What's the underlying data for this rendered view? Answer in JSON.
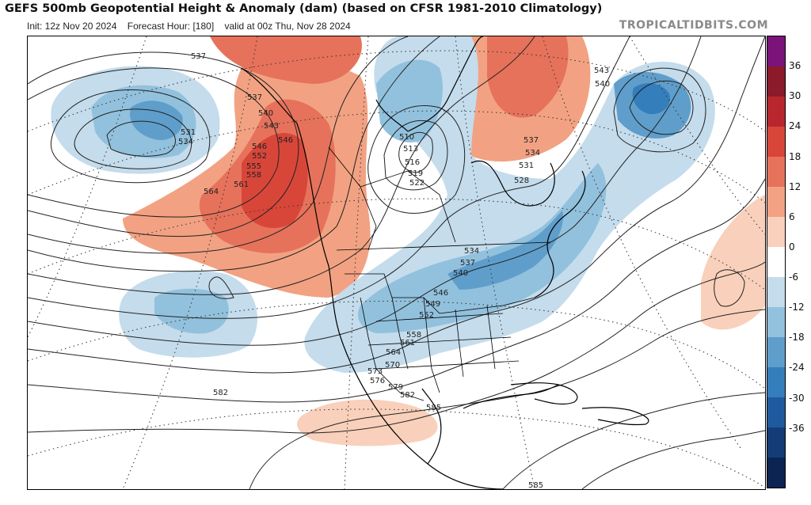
{
  "header": {
    "title": "GEFS 500mb Geopotential Height & Anomaly (dam) (based on CFSR 1981-2010 Climatology)",
    "init_label": "Init: 12z Nov 20 2024",
    "forecast_label": "Forecast Hour: [180]",
    "valid_label": "valid at 00z Thu, Nov 28 2024",
    "brand": "TROPICALTIDBITS.COM"
  },
  "colorbar": {
    "ticks": [
      "36",
      "30",
      "24",
      "18",
      "12",
      "6",
      "0",
      "-6",
      "-12",
      "-18",
      "-24",
      "-30",
      "-36"
    ],
    "colors": [
      "#7b137b",
      "#8b1a2a",
      "#b8272d",
      "#d8463a",
      "#e6725b",
      "#f2a282",
      "#f9d0bb",
      "#ffffff",
      "#c4dcec",
      "#92c1dd",
      "#5f9ecb",
      "#347ebb",
      "#1f5a9e",
      "#143d78",
      "#0b2452"
    ]
  },
  "contour_labels": [
    {
      "text": "537"
    },
    {
      "text": "531"
    },
    {
      "text": "534"
    },
    {
      "text": "537"
    },
    {
      "text": "540"
    },
    {
      "text": "543"
    },
    {
      "text": "546"
    },
    {
      "text": "546"
    },
    {
      "text": "552"
    },
    {
      "text": "555"
    },
    {
      "text": "558"
    },
    {
      "text": "561"
    },
    {
      "text": "564"
    },
    {
      "text": "510"
    },
    {
      "text": "513"
    },
    {
      "text": "516"
    },
    {
      "text": "519"
    },
    {
      "text": "522"
    },
    {
      "text": "537"
    },
    {
      "text": "534"
    },
    {
      "text": "531"
    },
    {
      "text": "528"
    },
    {
      "text": "543"
    },
    {
      "text": "540"
    },
    {
      "text": "534"
    },
    {
      "text": "537"
    },
    {
      "text": "540"
    },
    {
      "text": "546"
    },
    {
      "text": "549"
    },
    {
      "text": "552"
    },
    {
      "text": "558"
    },
    {
      "text": "561"
    },
    {
      "text": "564"
    },
    {
      "text": "570"
    },
    {
      "text": "573"
    },
    {
      "text": "576"
    },
    {
      "text": "579"
    },
    {
      "text": "582"
    },
    {
      "text": "582"
    },
    {
      "text": "585"
    },
    {
      "text": "585"
    }
  ]
}
